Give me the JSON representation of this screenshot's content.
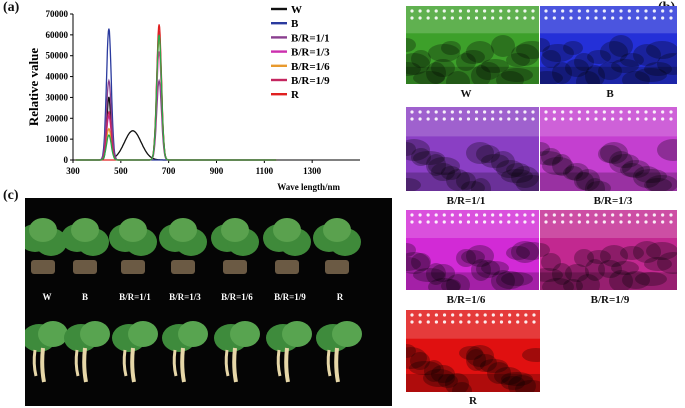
{
  "panels": {
    "a": "(a)",
    "b": "(b)",
    "c": "(c)"
  },
  "chart_data": {
    "type": "line",
    "xlabel": "Wave length/nm",
    "ylabel": "Relative value",
    "xlim": [
      300,
      1500
    ],
    "ylim": [
      0,
      70000
    ],
    "xticks": [
      300,
      500,
      700,
      900,
      1100,
      1300
    ],
    "yticks": [
      0,
      10000,
      20000,
      30000,
      40000,
      50000,
      60000,
      70000
    ],
    "legend": "top-right",
    "series": [
      {
        "name": "W",
        "color": "#111111",
        "peaks": [
          {
            "x": 450,
            "y": 30000,
            "w": 8
          },
          {
            "x": 550,
            "y": 14000,
            "w": 35
          }
        ]
      },
      {
        "name": "B",
        "color": "#2a3a9e",
        "peaks": [
          {
            "x": 450,
            "y": 63000,
            "w": 10
          }
        ]
      },
      {
        "name": "B/R=1/1",
        "color": "#8a3f8f",
        "peaks": [
          {
            "x": 450,
            "y": 38000,
            "w": 10
          },
          {
            "x": 660,
            "y": 38000,
            "w": 10
          }
        ]
      },
      {
        "name": "B/R=1/3",
        "color": "#cc2fae",
        "peaks": [
          {
            "x": 450,
            "y": 21000,
            "w": 10
          },
          {
            "x": 660,
            "y": 52000,
            "w": 10
          }
        ]
      },
      {
        "name": "B/R=1/6",
        "color": "#e89a2e",
        "peaks": [
          {
            "x": 450,
            "y": 15000,
            "w": 10
          },
          {
            "x": 660,
            "y": 58000,
            "w": 10
          }
        ]
      },
      {
        "name": "B/R=1/9",
        "color": "#c4265f",
        "peaks": [
          {
            "x": 450,
            "y": 23000,
            "w": 10
          },
          {
            "x": 660,
            "y": 62000,
            "w": 10
          }
        ]
      },
      {
        "name": "R",
        "color": "#e02020",
        "peaks": [
          {
            "x": 660,
            "y": 65000,
            "w": 10
          }
        ]
      },
      {
        "name": "",
        "color": "#2aa84a",
        "peaks": [
          {
            "x": 450,
            "y": 12000,
            "w": 10
          },
          {
            "x": 660,
            "y": 60000,
            "w": 10
          }
        ]
      }
    ]
  },
  "photos_b": [
    {
      "caption": "W",
      "color": "#3da02a"
    },
    {
      "caption": "B",
      "color": "#2430d8"
    },
    {
      "caption": "B/R=1/1",
      "color": "#8a3fc4"
    },
    {
      "caption": "B/R=1/3",
      "color": "#c43fd0"
    },
    {
      "caption": "B/R=1/6",
      "color": "#d22ad6"
    },
    {
      "caption": "B/R=1/9",
      "color": "#c22890"
    },
    {
      "caption": "R",
      "color": "#e01010"
    }
  ],
  "photo_c": {
    "labels": [
      "W",
      "B",
      "B/R=1/1",
      "B/R=1/3",
      "B/R=1/6",
      "B/R=1/9",
      "R"
    ]
  }
}
